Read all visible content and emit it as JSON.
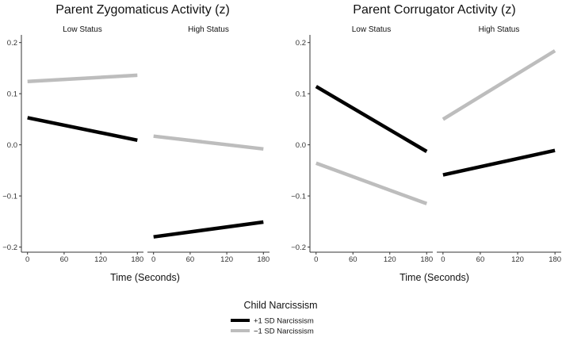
{
  "chart_data": [
    {
      "type": "line",
      "title": "Parent Zygomaticus Activity (z)",
      "xlabel": "Time (Seconds)",
      "ylabel": "",
      "ylim": [
        -0.21,
        0.215
      ],
      "yticks": [
        0.2,
        0.1,
        0.0,
        -0.1,
        -0.2
      ],
      "ytick_labels": [
        "0.2",
        "0.1",
        "0.0",
        "−0.1",
        "−0.2"
      ],
      "xlim": [
        -10,
        190
      ],
      "xticks": [
        0,
        60,
        120,
        180
      ],
      "xtick_labels": [
        "0",
        "60",
        "120",
        "180"
      ],
      "facets": [
        {
          "label": "Low Status",
          "series": [
            {
              "name": "−1 SD Narcissism",
              "x": [
                0,
                180
              ],
              "y": [
                0.124,
                0.136
              ]
            },
            {
              "name": "+1 SD Narcissism",
              "x": [
                0,
                180
              ],
              "y": [
                0.053,
                0.009
              ]
            }
          ]
        },
        {
          "label": "High Status",
          "series": [
            {
              "name": "−1 SD Narcissism",
              "x": [
                0,
                180
              ],
              "y": [
                0.017,
                -0.008
              ]
            },
            {
              "name": "+1 SD Narcissism",
              "x": [
                0,
                180
              ],
              "y": [
                -0.18,
                -0.151
              ]
            }
          ]
        }
      ]
    },
    {
      "type": "line",
      "title": "Parent Corrugator Activity (z)",
      "xlabel": "Time (Seconds)",
      "ylabel": "",
      "ylim": [
        -0.21,
        0.215
      ],
      "yticks": [
        0.2,
        0.1,
        0.0,
        -0.1,
        -0.2
      ],
      "ytick_labels": [
        "0.2",
        "0.1",
        "0.0",
        "−0.1",
        "−0.2"
      ],
      "xlim": [
        -10,
        190
      ],
      "xticks": [
        0,
        60,
        120,
        180
      ],
      "xtick_labels": [
        "0",
        "60",
        "120",
        "180"
      ],
      "facets": [
        {
          "label": "Low Status",
          "series": [
            {
              "name": "−1 SD Narcissism",
              "x": [
                0,
                180
              ],
              "y": [
                -0.036,
                -0.115
              ]
            },
            {
              "name": "+1 SD Narcissism",
              "x": [
                0,
                180
              ],
              "y": [
                0.114,
                -0.013
              ]
            }
          ]
        },
        {
          "label": "High Status",
          "series": [
            {
              "name": "−1 SD Narcissism",
              "x": [
                0,
                180
              ],
              "y": [
                0.05,
                0.184
              ]
            },
            {
              "name": "+1 SD Narcissism",
              "x": [
                0,
                180
              ],
              "y": [
                -0.059,
                -0.011
              ]
            }
          ]
        }
      ]
    }
  ],
  "legend": {
    "title": "Child Narcissism",
    "entries": [
      {
        "label": "+1 SD Narcissism",
        "color": "#000000"
      },
      {
        "label": "−1 SD Narcissism",
        "color": "#bdbdbd"
      }
    ]
  },
  "colors": {
    "+1 SD Narcissism": "#000000",
    "−1 SD Narcissism": "#bdbdbd",
    "axis": "#333333",
    "text": "#111111"
  }
}
